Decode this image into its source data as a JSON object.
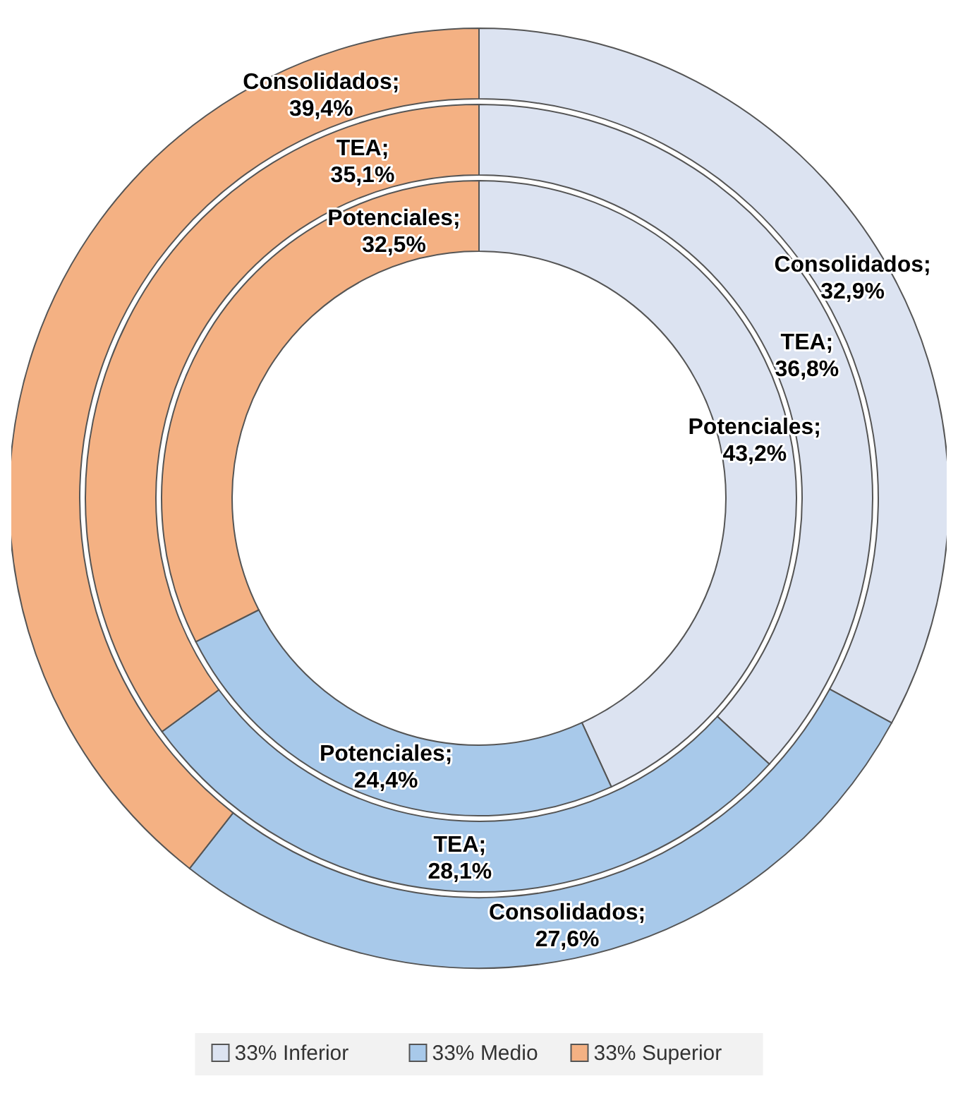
{
  "chart_data": {
    "type": "donut",
    "categories": [
      "33% Inferior",
      "33% Medio",
      "33% Superior"
    ],
    "colors": [
      "#dce3f1",
      "#a8c9ea",
      "#f4b183"
    ],
    "series": [
      {
        "values": [
          32.9,
          27.6,
          39.4
        ],
        "value_labels": [
          "Consolidados; 32,9%",
          "Consolidados; 27,6%",
          "Consolidados; 39,4%"
        ]
      },
      {
        "values": [
          36.8,
          28.1,
          35.1
        ],
        "value_labels": [
          "TEA; 36,8%",
          "TEA; 28,1%",
          "TEA; 35,1%"
        ]
      },
      {
        "values": [
          43.2,
          24.4,
          32.5
        ],
        "value_labels": [
          "Potenciales; 43,2%",
          "Potenciales; 24,4%",
          "Potenciales; 32,5%"
        ]
      }
    ],
    "legend": "bottom"
  }
}
